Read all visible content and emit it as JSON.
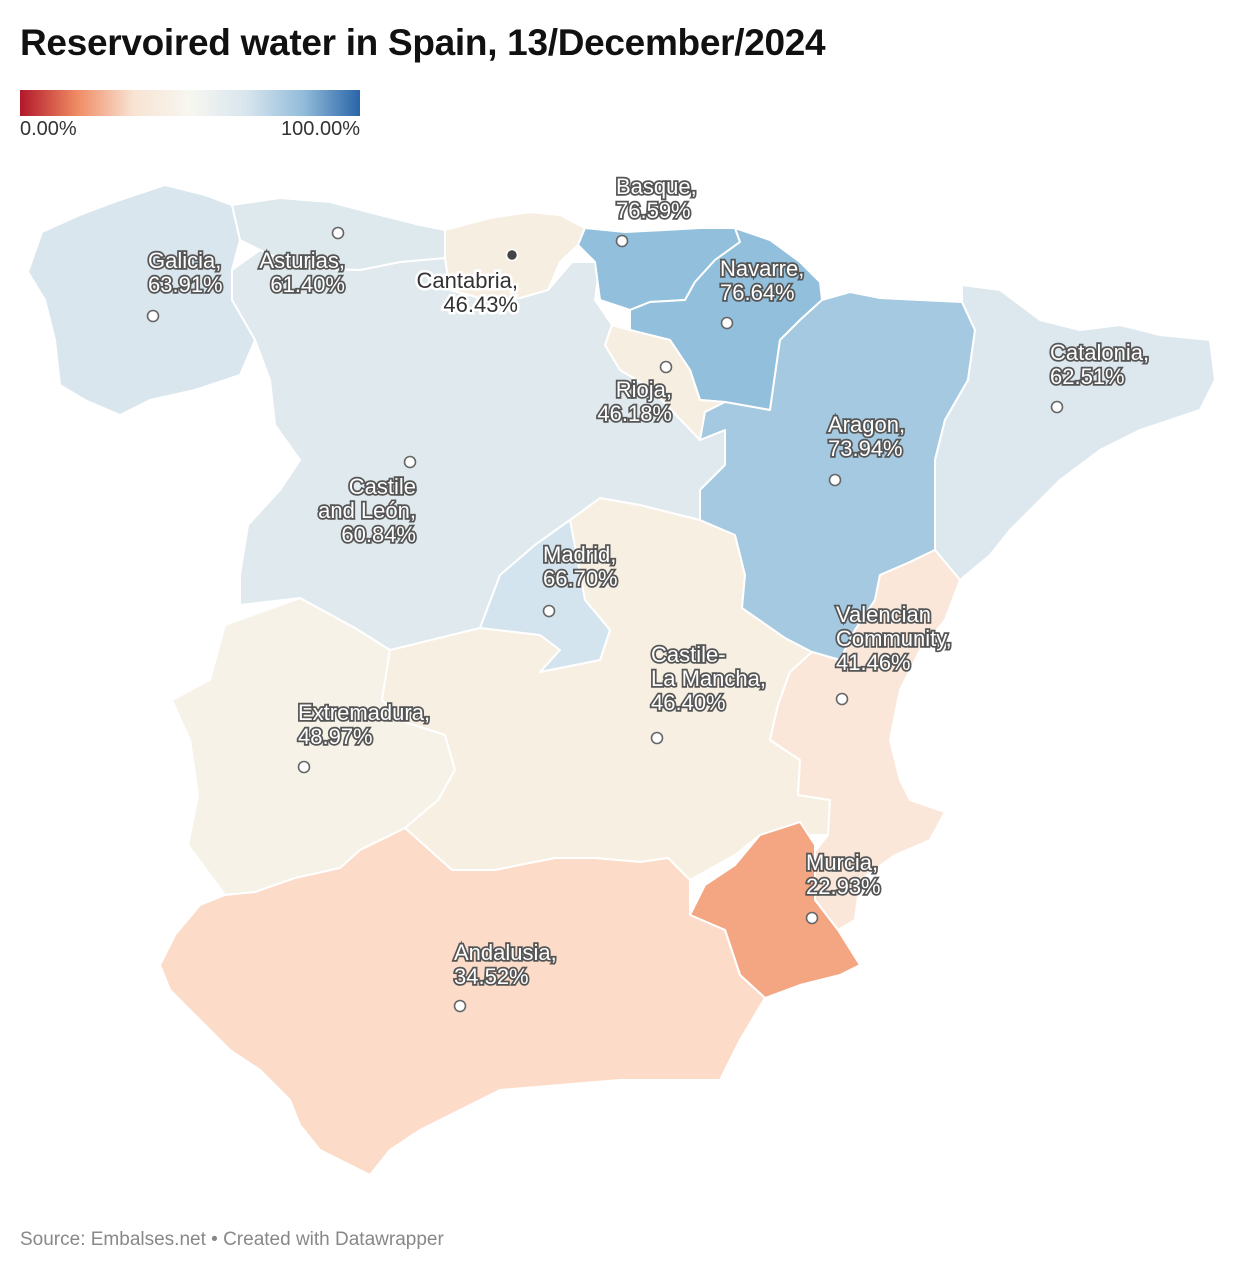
{
  "title": "Reservoired water in Spain, 13/December/2024",
  "legend": {
    "min_label": "0.00%",
    "max_label": "100.00%",
    "gradient": [
      "#b2182b",
      "#ef8a62",
      "#f8e3d3",
      "#f7f7f0",
      "#d8e5ee",
      "#92bcda",
      "#2a65a8"
    ]
  },
  "regions": [
    {
      "key": "galicia",
      "name": "Galicia",
      "value": "63.91%",
      "fill": "#d9e6ed"
    },
    {
      "key": "asturias",
      "name": "Asturias",
      "value": "61.40%",
      "fill": "#dee9ee"
    },
    {
      "key": "cantabria",
      "name": "Cantabria",
      "value": "46.43%",
      "fill": "#f7eee2"
    },
    {
      "key": "basque",
      "name": "Basque",
      "value": "76.59%",
      "fill": "#92bfdb"
    },
    {
      "key": "navarre",
      "name": "Navarre",
      "value": "76.64%",
      "fill": "#92bfdb"
    },
    {
      "key": "rioja",
      "name": "Rioja",
      "value": "46.18%",
      "fill": "#f7eee2"
    },
    {
      "key": "aragon",
      "name": "Aragon",
      "value": "73.94%",
      "fill": "#a4c9e0"
    },
    {
      "key": "catalonia",
      "name": "Catalonia",
      "value": "62.51%",
      "fill": "#dde8ee"
    },
    {
      "key": "castile_leon",
      "name": "Castile and León",
      "value": "60.84%",
      "fill": "#e0eaee"
    },
    {
      "key": "madrid",
      "name": "Madrid",
      "value": "66.70%",
      "fill": "#d3e4ee"
    },
    {
      "key": "castile_la_mancha",
      "name": "Castile-La Mancha",
      "value": "46.40%",
      "fill": "#f7efe2"
    },
    {
      "key": "valencian",
      "name": "Valencian Community",
      "value": "41.46%",
      "fill": "#fae7d9"
    },
    {
      "key": "extremadura",
      "name": "Extremadura",
      "value": "48.97%",
      "fill": "#f6f2e8"
    },
    {
      "key": "murcia",
      "name": "Murcia",
      "value": "22.93%",
      "fill": "#f4a582"
    },
    {
      "key": "andalusia",
      "name": "Andalusia",
      "value": "34.52%",
      "fill": "#fcdcc8"
    }
  ],
  "labels": {
    "galicia": [
      "Galicia,",
      "63.91%"
    ],
    "asturias": [
      "Asturias,",
      "61.40%"
    ],
    "cantabria": [
      "Cantabria,",
      "46.43%"
    ],
    "basque": [
      "Basque,",
      "76.59%"
    ],
    "navarre": [
      "Navarre,",
      "76.64%"
    ],
    "rioja": [
      "Rioja,",
      "46.18%"
    ],
    "aragon": [
      "Aragon,",
      "73.94%"
    ],
    "catalonia": [
      "Catalonia,",
      "62.51%"
    ],
    "castile_leon": [
      "Castile",
      "and León,",
      "60.84%"
    ],
    "madrid": [
      "Madrid,",
      "66.70%"
    ],
    "castile_la_mancha": [
      "Castile-",
      "La Mancha,",
      "46.40%"
    ],
    "valencian": [
      "Valencian",
      "Community,",
      "41.46%"
    ],
    "extremadura": [
      "Extremadura,",
      "48.97%"
    ],
    "murcia": [
      "Murcia,",
      "22.93%"
    ],
    "andalusia": [
      "Andalusia,",
      "34.52%"
    ]
  },
  "footer": "Source: Embalses.net • Created with Datawrapper"
}
